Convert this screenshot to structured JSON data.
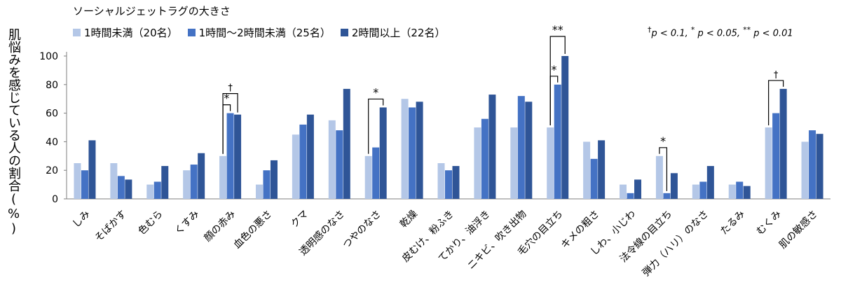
{
  "chart_data": {
    "type": "bar",
    "legend_title": "ソーシャルジェットラグの大きさ",
    "categories": [
      "しみ",
      "そばかす",
      "色むら",
      "くすみ",
      "顔の赤み",
      "血色の悪さ",
      "クマ",
      "透明感のなさ",
      "つやのなさ",
      "乾燥",
      "皮むけ、粉ふき",
      "てかり、油浮き",
      "ニキビ、吹き出物",
      "毛穴の目立ち",
      "キメの粗さ",
      "しわ、小じわ",
      "法令線の目立ち",
      "弾力（ハリ）のなさ",
      "たるみ",
      "むくみ",
      "肌の敏感さ"
    ],
    "series": [
      {
        "name": "1時間未満（20名）",
        "color": "#b4c7e7",
        "values": [
          25,
          25,
          10,
          20,
          30,
          10,
          45,
          55,
          30,
          70,
          25,
          50,
          50,
          50,
          40,
          10,
          30,
          10,
          10,
          50,
          40
        ]
      },
      {
        "name": "1時間～2時間未満（25名）",
        "color": "#4472c4",
        "values": [
          20,
          16,
          12,
          24,
          60,
          20,
          52,
          48,
          36,
          64,
          20,
          56,
          72,
          80,
          28,
          4,
          4,
          12,
          12,
          60,
          48
        ]
      },
      {
        "name": "2時間以上（22名）",
        "color": "#2f5597",
        "values": [
          41,
          13.5,
          23,
          32,
          59,
          27,
          59,
          77,
          64,
          68,
          23,
          73,
          68,
          100,
          41,
          13.5,
          18,
          23,
          9,
          77,
          45.5
        ]
      }
    ],
    "ylabel": "肌悩みを感じている人の割合(%)",
    "ylim": [
      0,
      100
    ],
    "yticks": [
      0,
      20,
      40,
      60,
      80,
      100
    ],
    "grid": false,
    "legend_position": "top-left",
    "significance_note": {
      "dagger": "†",
      "dagger_text": "p < 0.1,",
      "star": "*",
      "star_text": "p < 0.05,",
      "double_star": "**",
      "double_star_text": "p < 0.01"
    },
    "annotations": [
      {
        "category_index": 4,
        "from_series": 0,
        "to_series": 1,
        "label": "*"
      },
      {
        "category_index": 4,
        "from_series": 0,
        "to_series": 2,
        "label": "†"
      },
      {
        "category_index": 8,
        "from_series": 0,
        "to_series": 2,
        "label": "*"
      },
      {
        "category_index": 13,
        "from_series": 0,
        "to_series": 1,
        "label": "*"
      },
      {
        "category_index": 13,
        "from_series": 0,
        "to_series": 2,
        "label": "**"
      },
      {
        "category_index": 16,
        "from_series": 0,
        "to_series": 1,
        "label": "*"
      },
      {
        "category_index": 19,
        "from_series": 0,
        "to_series": 2,
        "label": "†"
      }
    ]
  }
}
